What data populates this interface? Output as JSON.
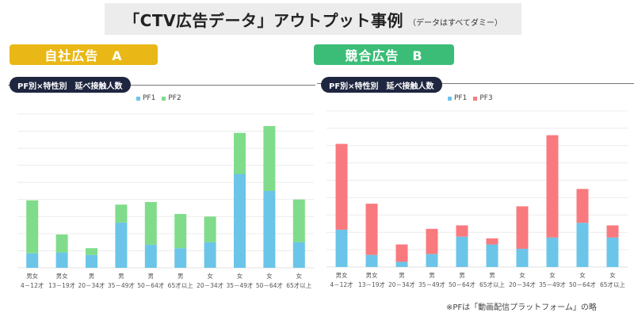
{
  "header": {
    "title": "「CTV広告データ」アウトプット事例",
    "subtitle": "（データはすべてダミー）"
  },
  "colors": {
    "pf1": "#6bc5e8",
    "pf2": "#80dc8a",
    "pf3": "#f97a7e",
    "section_a": "#e9b816",
    "section_b": "#3bbd78",
    "subhead_bg": "#1f2640",
    "title_bg": "#ececec"
  },
  "sections": [
    {
      "label": "自社広告　A",
      "subhead": "PF別×特性別　延べ接触人数",
      "legend": [
        "PF1",
        "PF2"
      ]
    },
    {
      "label": "競合広告　B",
      "subhead": "PF別×特性別　延べ接触人数",
      "legend": [
        "PF1",
        "PF3"
      ]
    }
  ],
  "footnote": "※PFは「動画配信プラットフォーム」の略",
  "chart_data": [
    {
      "type": "bar",
      "stacked": true,
      "title": "PF別×特性別　延べ接触人数",
      "subtitle": "自社広告　A",
      "xlabel": "",
      "ylabel": "",
      "grid": true,
      "legend_position": "top-center",
      "ylim": [
        0,
        9
      ],
      "y_tick_labels_visible": false,
      "categories": [
        [
          "男女",
          "4－12才"
        ],
        [
          "男女",
          "13－19才"
        ],
        [
          "男",
          "20－34才"
        ],
        [
          "男",
          "35－49才"
        ],
        [
          "男",
          "50－64才"
        ],
        [
          "男",
          "65才以上"
        ],
        [
          "女",
          "20－34才"
        ],
        [
          "女",
          "35－49才"
        ],
        [
          "女",
          "50－64才"
        ],
        [
          "女",
          "65才以上"
        ]
      ],
      "series": [
        {
          "name": "PF1",
          "color": "#6bc5e8",
          "values": [
            0.85,
            0.9,
            0.75,
            2.65,
            1.35,
            1.15,
            1.5,
            5.5,
            4.5,
            1.5
          ]
        },
        {
          "name": "PF2",
          "color": "#80dc8a",
          "values": [
            3.1,
            1.05,
            0.4,
            1.05,
            2.5,
            2.0,
            1.5,
            2.4,
            3.8,
            2.5
          ]
        }
      ]
    },
    {
      "type": "bar",
      "stacked": true,
      "title": "PF別×特性別　延べ接触人数",
      "subtitle": "競合広告　B",
      "xlabel": "",
      "ylabel": "",
      "grid": true,
      "legend_position": "top-center",
      "ylim": [
        0,
        9
      ],
      "y_tick_labels_visible": false,
      "categories": [
        [
          "男女",
          "4－12才"
        ],
        [
          "男女",
          "13－19才"
        ],
        [
          "男",
          "20－34才"
        ],
        [
          "男",
          "35－49才"
        ],
        [
          "男",
          "50－64才"
        ],
        [
          "男",
          "65才以上"
        ],
        [
          "女",
          "20－34才"
        ],
        [
          "女",
          "35－49才"
        ],
        [
          "女",
          "50－64才"
        ],
        [
          "女",
          "65才以上"
        ]
      ],
      "series": [
        {
          "name": "PF1",
          "color": "#6bc5e8",
          "values": [
            2.15,
            0.7,
            0.3,
            0.75,
            1.75,
            1.3,
            1.05,
            1.7,
            2.55,
            1.7
          ]
        },
        {
          "name": "PF3",
          "color": "#f97a7e",
          "values": [
            4.95,
            2.95,
            1.0,
            1.45,
            0.65,
            0.35,
            2.45,
            5.9,
            1.95,
            0.7
          ]
        }
      ]
    }
  ]
}
